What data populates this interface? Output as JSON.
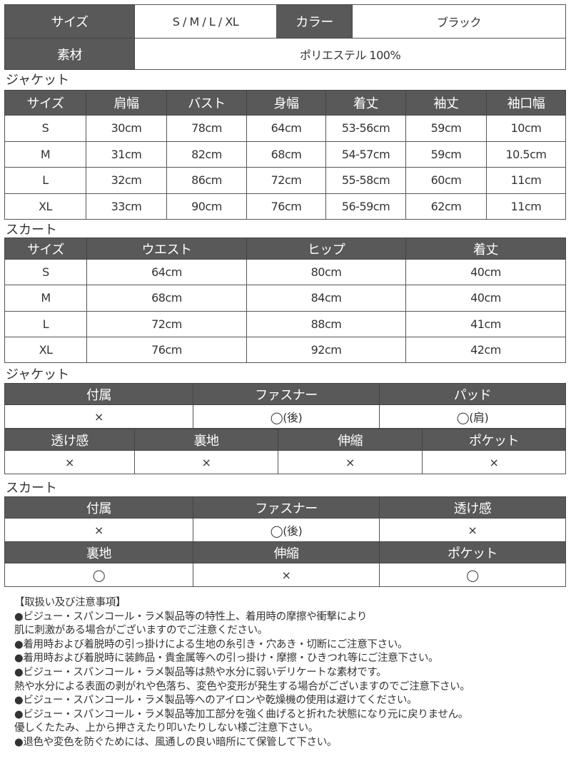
{
  "colors": {
    "header_bg": "#595959",
    "header_text": "#ffffff",
    "border": "#555555"
  },
  "spec": {
    "size_label": "サイズ",
    "size_value": "S / M / L / XL",
    "color_label": "カラー",
    "color_value": "ブラック",
    "material_label": "素材",
    "material_value": "ポリエステル 100%"
  },
  "jacket_size": {
    "title": "ジャケット",
    "headers": [
      "サイズ",
      "肩幅",
      "バスト",
      "身幅",
      "着丈",
      "袖丈",
      "袖口幅"
    ],
    "rows": [
      [
        "S",
        "30cm",
        "78cm",
        "64cm",
        "53-56cm",
        "59cm",
        "10cm"
      ],
      [
        "M",
        "31cm",
        "82cm",
        "68cm",
        "54-57cm",
        "59cm",
        "10.5cm"
      ],
      [
        "L",
        "32cm",
        "86cm",
        "72cm",
        "55-58cm",
        "60cm",
        "11cm"
      ],
      [
        "XL",
        "33cm",
        "90cm",
        "76cm",
        "56-59cm",
        "62cm",
        "11cm"
      ]
    ]
  },
  "skirt_size": {
    "title": "スカート",
    "headers": [
      "サイズ",
      "ウエスト",
      "ヒップ",
      "着丈"
    ],
    "rows": [
      [
        "S",
        "64cm",
        "80cm",
        "40cm"
      ],
      [
        "M",
        "68cm",
        "84cm",
        "40cm"
      ],
      [
        "L",
        "72cm",
        "88cm",
        "41cm"
      ],
      [
        "XL",
        "76cm",
        "92cm",
        "42cm"
      ]
    ]
  },
  "jacket_attr": {
    "title": "ジャケット",
    "group1": {
      "headers": [
        "付属",
        "ファスナー",
        "パッド"
      ],
      "values": [
        "×",
        "◯(後)",
        "◯(肩)"
      ]
    },
    "group2": {
      "headers": [
        "透け感",
        "裏地",
        "伸縮",
        "ポケット"
      ],
      "values": [
        "×",
        "×",
        "×",
        "×"
      ]
    }
  },
  "skirt_attr": {
    "title": "スカート",
    "group1": {
      "headers": [
        "付属",
        "ファスナー",
        "透け感"
      ],
      "values": [
        "×",
        "◯(後)",
        "×"
      ]
    },
    "group2": {
      "headers": [
        "裏地",
        "伸縮",
        "ポケット"
      ],
      "values": [
        "◯",
        "×",
        "◯"
      ]
    }
  },
  "notes": [
    "【取扱い及び注意事項】",
    "●ビジュー・スパンコール・ラメ製品等の特性上、着用時の摩擦や衝撃により",
    "肌に刺激がある場合がございますのでご注意ください。",
    "●着用時および着脱時の引っ掛けによる生地の糸引き・穴あき・切断にご注意下さい。",
    "●着用時および着脱時に装飾品・貴金属等への引っ掛け・摩擦・ひきつれ等にご注意下さい。",
    "●ビジュー・スパンコール・ラメ製品等は熱や水分に弱いデリケートな素材です。",
    "熱や水分による表面の剥がれや色落ち、変色や変形が発生する場合がございますのでご注意下さい。",
    "●ビジュー・スパンコール・ラメ製品等へのアイロンや乾燥機の使用は避けてください。",
    "●ビジュー・スパンコール・ラメ製品等加工部分を強く曲げると折れた状態になり元に戻りません。",
    "優しくたたみ、上から押さえたり叩いたりしない様ご注意下さい。",
    "●退色や変色を防ぐためには、風通しの良い暗所にて保管して下さい。"
  ]
}
